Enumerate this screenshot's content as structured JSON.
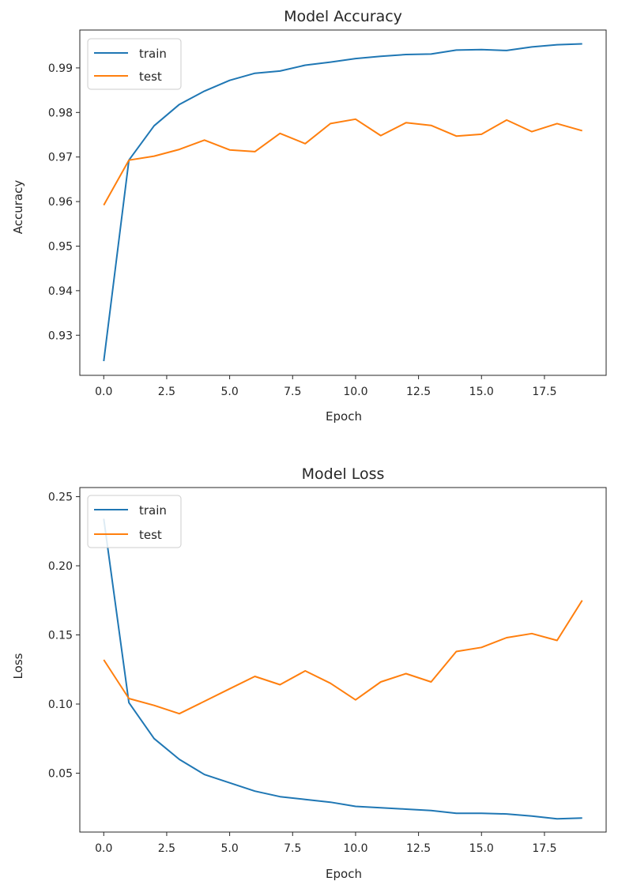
{
  "chart_data": [
    {
      "type": "line",
      "title": "Model Accuracy",
      "xlabel": "Epoch",
      "ylabel": "Accuracy",
      "xlim": [
        -0.95,
        19.95
      ],
      "ylim": [
        0.921,
        0.9985
      ],
      "xticks": [
        0,
        2.5,
        5,
        7.5,
        10,
        12.5,
        15,
        17.5
      ],
      "xtick_labels": [
        "0.0",
        "2.5",
        "5.0",
        "7.5",
        "10.0",
        "12.5",
        "15.0",
        "17.5"
      ],
      "yticks": [
        0.93,
        0.94,
        0.95,
        0.96,
        0.97,
        0.98,
        0.99
      ],
      "ytick_labels": [
        "0.93",
        "0.94",
        "0.95",
        "0.96",
        "0.97",
        "0.98",
        "0.99"
      ],
      "legend": "upper-left",
      "x": [
        0,
        1,
        2,
        3,
        4,
        5,
        6,
        7,
        8,
        9,
        10,
        11,
        12,
        13,
        14,
        15,
        16,
        17,
        18,
        19
      ],
      "series": [
        {
          "name": "train",
          "color": "#1f77b4",
          "values": [
            0.9242,
            0.9693,
            0.977,
            0.9818,
            0.9848,
            0.9872,
            0.9888,
            0.9893,
            0.9906,
            0.9913,
            0.9921,
            0.9926,
            0.993,
            0.9931,
            0.994,
            0.9941,
            0.9939,
            0.9947,
            0.9952,
            0.9954
          ]
        },
        {
          "name": "test",
          "color": "#ff7f0e",
          "values": [
            0.9592,
            0.9693,
            0.9702,
            0.9717,
            0.9738,
            0.9716,
            0.9712,
            0.9753,
            0.973,
            0.9775,
            0.9785,
            0.9748,
            0.9777,
            0.9771,
            0.9747,
            0.9751,
            0.9783,
            0.9757,
            0.9775,
            0.9759
          ]
        }
      ]
    },
    {
      "type": "line",
      "title": "Model Loss",
      "xlabel": "Epoch",
      "ylabel": "Loss",
      "xlim": [
        -0.95,
        19.95
      ],
      "ylim": [
        0.0074,
        0.2566
      ],
      "xticks": [
        0,
        2.5,
        5,
        7.5,
        10,
        12.5,
        15,
        17.5
      ],
      "xtick_labels": [
        "0.0",
        "2.5",
        "5.0",
        "7.5",
        "10.0",
        "12.5",
        "15.0",
        "17.5"
      ],
      "yticks": [
        0.05,
        0.1,
        0.15,
        0.2,
        0.25
      ],
      "ytick_labels": [
        "0.05",
        "0.10",
        "0.15",
        "0.20",
        "0.25"
      ],
      "legend": "upper-left",
      "x": [
        0,
        1,
        2,
        3,
        4,
        5,
        6,
        7,
        8,
        9,
        10,
        11,
        12,
        13,
        14,
        15,
        16,
        17,
        18,
        19
      ],
      "series": [
        {
          "name": "train",
          "color": "#1f77b4",
          "values": [
            0.234,
            0.101,
            0.075,
            0.06,
            0.049,
            0.043,
            0.037,
            0.033,
            0.031,
            0.029,
            0.026,
            0.025,
            0.024,
            0.023,
            0.021,
            0.021,
            0.0205,
            0.019,
            0.017,
            0.0175
          ]
        },
        {
          "name": "test",
          "color": "#ff7f0e",
          "values": [
            0.132,
            0.104,
            0.099,
            0.093,
            0.102,
            0.111,
            0.12,
            0.114,
            0.124,
            0.115,
            0.103,
            0.116,
            0.122,
            0.116,
            0.138,
            0.141,
            0.148,
            0.151,
            0.146,
            0.175
          ]
        }
      ]
    }
  ]
}
